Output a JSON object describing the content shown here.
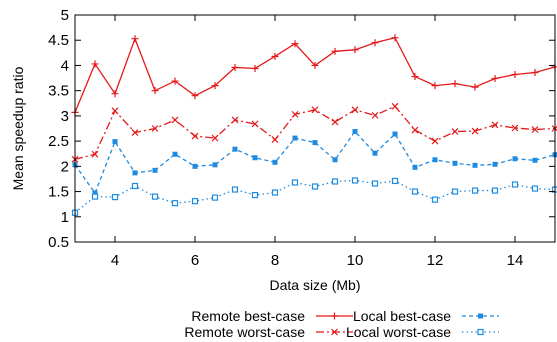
{
  "chart_data": {
    "type": "line",
    "title": "",
    "xlabel": "Data size (Mb)",
    "ylabel": "Mean speedup ratio",
    "xlim": [
      3,
      15
    ],
    "ylim": [
      0.5,
      5
    ],
    "xticks": [
      4,
      6,
      8,
      10,
      12,
      14
    ],
    "xtick_labels": [
      "4",
      "6",
      "8",
      "10",
      "12",
      "14"
    ],
    "yticks": [
      0.5,
      1,
      1.5,
      2,
      2.5,
      3,
      3.5,
      4,
      4.5,
      5
    ],
    "ytick_labels": [
      "0.5",
      "1",
      "1.5",
      "2",
      "2.5",
      "3",
      "3.5",
      "4",
      "4.5",
      "5"
    ],
    "grid": false,
    "legend_position": "bottom",
    "x": [
      3,
      3.5,
      4,
      4.5,
      5,
      5.5,
      6,
      6.5,
      7,
      7.5,
      8,
      8.5,
      9,
      9.5,
      10,
      10.5,
      11,
      11.5,
      12,
      12.5,
      13,
      13.5,
      14,
      14.5,
      15
    ],
    "series": [
      {
        "name": "Remote best-case",
        "color": "#e41a1c",
        "dash": "solid",
        "marker": "plus",
        "values": [
          3.07,
          4.03,
          3.44,
          4.53,
          3.5,
          3.69,
          3.4,
          3.6,
          3.96,
          3.94,
          4.18,
          4.43,
          4.0,
          4.28,
          4.31,
          4.45,
          4.55,
          3.78,
          3.6,
          3.64,
          3.57,
          3.74,
          3.82,
          3.86,
          3.97
        ]
      },
      {
        "name": "Remote worst-case",
        "color": "#e41a1c",
        "dash": "dashdot",
        "marker": "x",
        "values": [
          2.14,
          2.24,
          3.1,
          2.67,
          2.75,
          2.92,
          2.6,
          2.56,
          2.92,
          2.84,
          2.53,
          3.03,
          3.12,
          2.88,
          3.12,
          3.01,
          3.19,
          2.72,
          2.5,
          2.69,
          2.7,
          2.82,
          2.76,
          2.73,
          2.75
        ]
      },
      {
        "name": "Local best-case",
        "color": "#1f8be0",
        "dash": "dashed",
        "marker": "filled-square",
        "values": [
          2.03,
          1.47,
          2.49,
          1.87,
          1.92,
          2.24,
          2.0,
          2.03,
          2.34,
          2.17,
          2.08,
          2.56,
          2.47,
          2.13,
          2.69,
          2.26,
          2.64,
          1.98,
          2.13,
          2.06,
          2.02,
          2.04,
          2.15,
          2.12,
          2.23
        ]
      },
      {
        "name": "Local worst-case",
        "color": "#1f8be0",
        "dash": "dotted",
        "marker": "open-square",
        "values": [
          1.08,
          1.4,
          1.39,
          1.61,
          1.4,
          1.27,
          1.31,
          1.38,
          1.54,
          1.43,
          1.48,
          1.68,
          1.6,
          1.7,
          1.72,
          1.66,
          1.71,
          1.5,
          1.34,
          1.5,
          1.52,
          1.52,
          1.64,
          1.56,
          1.54
        ]
      }
    ]
  }
}
